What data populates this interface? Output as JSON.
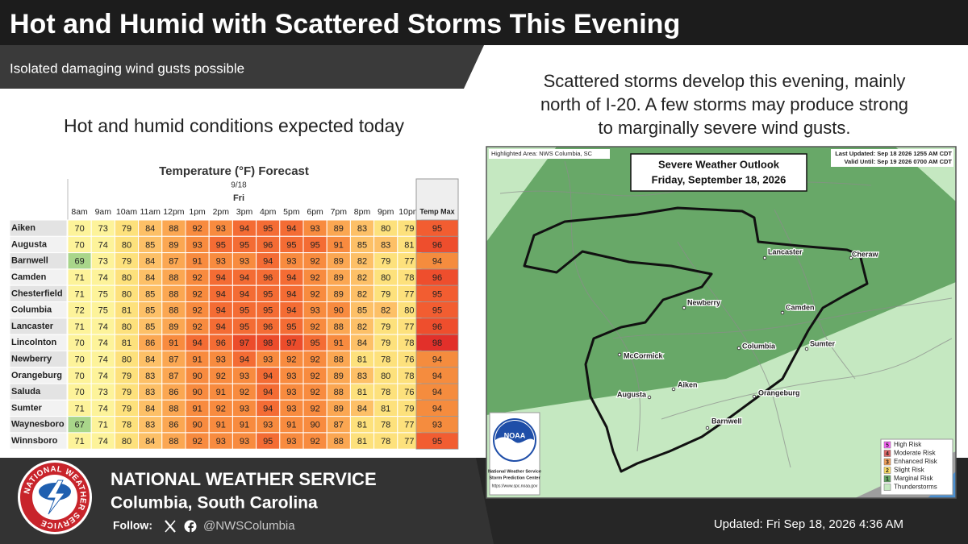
{
  "header": {
    "title": "Hot and Humid with Scattered Storms This Evening",
    "subtitle": "Isolated damaging wind gusts possible"
  },
  "left": {
    "heading": "Hot and humid conditions expected today"
  },
  "right": {
    "description": [
      "Scattered storms develop this evening, mainly",
      "north of I-20. A few storms may produce strong",
      "to marginally severe wind gusts."
    ]
  },
  "table": {
    "title": "Temperature (°F) Forecast",
    "date": "9/18",
    "day": "Fri",
    "columns": [
      "8am",
      "9am",
      "10am",
      "11am",
      "12pm",
      "1pm",
      "2pm",
      "3pm",
      "4pm",
      "5pm",
      "6pm",
      "7pm",
      "8pm",
      "9pm",
      "10pm"
    ],
    "max_header": "Temp Max",
    "rows": [
      {
        "name": "Aiken",
        "values": [
          70,
          73,
          79,
          84,
          88,
          92,
          93,
          94,
          95,
          94,
          93,
          89,
          83,
          80,
          79
        ],
        "max": 95
      },
      {
        "name": "Augusta",
        "values": [
          70,
          74,
          80,
          85,
          89,
          93,
          95,
          95,
          96,
          95,
          95,
          91,
          85,
          83,
          81
        ],
        "max": 96
      },
      {
        "name": "Barnwell",
        "values": [
          69,
          73,
          79,
          84,
          87,
          91,
          93,
          93,
          94,
          93,
          92,
          89,
          82,
          79,
          77
        ],
        "max": 94
      },
      {
        "name": "Camden",
        "values": [
          71,
          74,
          80,
          84,
          88,
          92,
          94,
          94,
          96,
          94,
          92,
          89,
          82,
          80,
          78
        ],
        "max": 96
      },
      {
        "name": "Chesterfield",
        "values": [
          71,
          75,
          80,
          85,
          88,
          92,
          94,
          94,
          95,
          94,
          92,
          89,
          82,
          79,
          77
        ],
        "max": 95
      },
      {
        "name": "Columbia",
        "values": [
          72,
          75,
          81,
          85,
          88,
          92,
          94,
          95,
          95,
          94,
          93,
          90,
          85,
          82,
          80
        ],
        "max": 95
      },
      {
        "name": "Lancaster",
        "values": [
          71,
          74,
          80,
          85,
          89,
          92,
          94,
          95,
          96,
          95,
          92,
          88,
          82,
          79,
          77
        ],
        "max": 96
      },
      {
        "name": "Lincolnton",
        "values": [
          70,
          74,
          81,
          86,
          91,
          94,
          96,
          97,
          98,
          97,
          95,
          91,
          84,
          79,
          78
        ],
        "max": 98
      },
      {
        "name": "Newberry",
        "values": [
          70,
          74,
          80,
          84,
          87,
          91,
          93,
          94,
          93,
          92,
          92,
          88,
          81,
          78,
          76
        ],
        "max": 94
      },
      {
        "name": "Orangeburg",
        "values": [
          70,
          74,
          79,
          83,
          87,
          90,
          92,
          93,
          94,
          93,
          92,
          89,
          83,
          80,
          78
        ],
        "max": 94
      },
      {
        "name": "Saluda",
        "values": [
          70,
          73,
          79,
          83,
          86,
          90,
          91,
          92,
          94,
          93,
          92,
          88,
          81,
          78,
          76
        ],
        "max": 94
      },
      {
        "name": "Sumter",
        "values": [
          71,
          74,
          79,
          84,
          88,
          91,
          92,
          93,
          94,
          93,
          92,
          89,
          84,
          81,
          79
        ],
        "max": 94
      },
      {
        "name": "Waynesboro",
        "values": [
          67,
          71,
          78,
          83,
          86,
          90,
          91,
          91,
          93,
          91,
          90,
          87,
          81,
          78,
          77
        ],
        "max": 93
      },
      {
        "name": "Winnsboro",
        "values": [
          71,
          74,
          80,
          84,
          88,
          92,
          93,
          93,
          95,
          93,
          92,
          88,
          81,
          78,
          77
        ],
        "max": 95
      }
    ]
  },
  "map": {
    "highlighted": "Highlighted Area: NWS Columbia, SC",
    "last_updated": "Last Updated: Sep 18 2026 1255 AM CDT",
    "valid_until": "Valid Until: Sep 19 2026 0700 AM CDT",
    "outlook_title": "Severe Weather Outlook",
    "outlook_date": "Friday, September 18, 2026",
    "cities": [
      "Lancaster",
      "Cheraw",
      "Newberry",
      "Camden",
      "Columbia",
      "Sumter",
      "McCormick",
      "Aiken",
      "Augusta",
      "Orangeburg",
      "Barnwell"
    ],
    "noaa": {
      "logo": "NOAA",
      "line1": "National Weather Service",
      "line2": "Storm Prediction Center",
      "url": "https://www.spc.noaa.gov"
    },
    "legend": [
      {
        "level": 5,
        "label": "High Risk"
      },
      {
        "level": 4,
        "label": "Moderate Risk"
      },
      {
        "level": 3,
        "label": "Enhanced Risk"
      },
      {
        "level": 2,
        "label": "Slight Risk"
      },
      {
        "level": 1,
        "label": "Marginal Risk"
      },
      {
        "label": "Thunderstorms"
      }
    ]
  },
  "footer": {
    "logo_text": "NATIONAL WEATHER SERVICE",
    "org": "NATIONAL WEATHER SERVICE",
    "office": "Columbia, South Carolina",
    "follow": "Follow:",
    "handle": "@NWSColumbia",
    "updated": "Updated: Fri Sep 18, 2026 4:36 AM"
  }
}
